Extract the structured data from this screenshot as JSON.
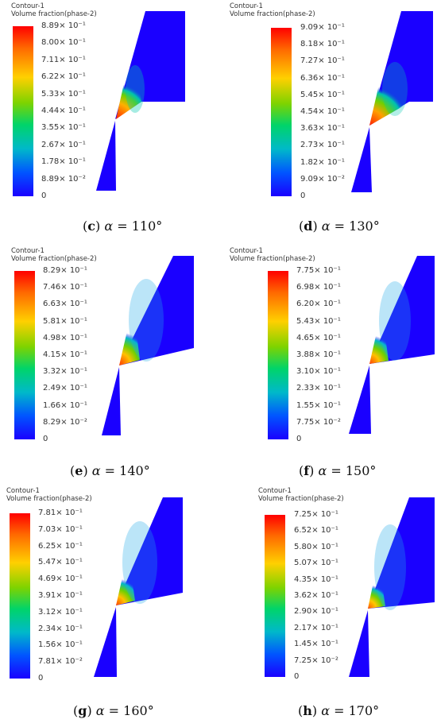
{
  "legend_title": "Contour-1",
  "legend_variable": "Volume fraction(phase-2)",
  "panels": [
    {
      "id": "c",
      "angle": "110°",
      "ticks": [
        "8.89× 10⁻¹",
        "8.00× 10⁻¹",
        "7.11× 10⁻¹",
        "6.22× 10⁻¹",
        "5.33× 10⁻¹",
        "4.44× 10⁻¹",
        "3.55× 10⁻¹",
        "2.67× 10⁻¹",
        "1.78× 10⁻¹",
        "8.89× 10⁻²",
        "0"
      ]
    },
    {
      "id": "d",
      "angle": "130°",
      "ticks": [
        "9.09× 10⁻¹",
        "8.18× 10⁻¹",
        "7.27× 10⁻¹",
        "6.36× 10⁻¹",
        "5.45× 10⁻¹",
        "4.54× 10⁻¹",
        "3.63× 10⁻¹",
        "2.73× 10⁻¹",
        "1.82× 10⁻¹",
        "9.09× 10⁻²",
        "0"
      ]
    },
    {
      "id": "e",
      "angle": "140°",
      "ticks": [
        "8.29× 10⁻¹",
        "7.46× 10⁻¹",
        "6.63× 10⁻¹",
        "5.81× 10⁻¹",
        "4.98× 10⁻¹",
        "4.15× 10⁻¹",
        "3.32× 10⁻¹",
        "2.49× 10⁻¹",
        "1.66× 10⁻¹",
        "8.29× 10⁻²",
        "0"
      ]
    },
    {
      "id": "f",
      "angle": "150°",
      "ticks": [
        "7.75× 10⁻¹",
        "6.98× 10⁻¹",
        "6.20× 10⁻¹",
        "5.43× 10⁻¹",
        "4.65× 10⁻¹",
        "3.88× 10⁻¹",
        "3.10× 10⁻¹",
        "2.33× 10⁻¹",
        "1.55× 10⁻¹",
        "7.75× 10⁻²",
        "0"
      ]
    },
    {
      "id": "g",
      "angle": "160°",
      "ticks": [
        "7.81× 10⁻¹",
        "7.03× 10⁻¹",
        "6.25× 10⁻¹",
        "5.47× 10⁻¹",
        "4.69× 10⁻¹",
        "3.91× 10⁻¹",
        "3.12× 10⁻¹",
        "2.34× 10⁻¹",
        "1.56× 10⁻¹",
        "7.81× 10⁻²",
        "0"
      ]
    },
    {
      "id": "h",
      "angle": "170°",
      "ticks": [
        "7.25× 10⁻¹",
        "6.52× 10⁻¹",
        "5.80× 10⁻¹",
        "5.07× 10⁻¹",
        "4.35× 10⁻¹",
        "3.62× 10⁻¹",
        "2.90× 10⁻¹",
        "2.17× 10⁻¹",
        "1.45× 10⁻¹",
        "7.25× 10⁻²",
        "0"
      ]
    }
  ],
  "colors": {
    "domain": "#1a00ff",
    "high": "#ff0000",
    "mid": "#7ed300",
    "low": "#00b9c9"
  }
}
